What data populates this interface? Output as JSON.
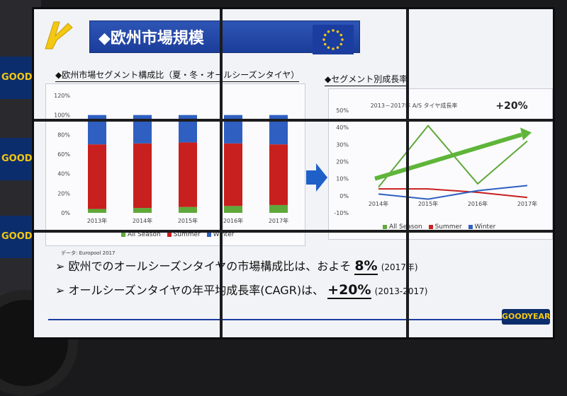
{
  "slide": {
    "title": "◆欧州市場規模",
    "left_section_title": "◆欧州市場セグメント構成比（夏・冬・オールシーズンタイヤ）",
    "right_section_title": "◆セグメント別成長率",
    "source": "データ: Europool 2017",
    "bullet1_text": "欧州でのオールシーズンタイヤの市場構成比は、およそ",
    "bullet1_value": "8%",
    "bullet1_suffix": "(2017年)",
    "bullet2_text": "オールシーズンタイヤの年平均成長率(CAGR)は、",
    "bullet2_value": "+20%",
    "bullet2_suffix": "(2013-2017)",
    "bullet_marker": "➢",
    "brand": "GOODYEAR",
    "stage_banner": "GOODYEAR"
  },
  "colors": {
    "all_season": "#5fa83a",
    "summer": "#c8201e",
    "winter": "#2f5fc0",
    "title_bar": "#1b3d9a",
    "trend_arrow": "#5fb53a"
  },
  "chart_data": [
    {
      "type": "bar",
      "stacked": true,
      "categories": [
        "2013年",
        "2014年",
        "2015年",
        "2016年",
        "2017年"
      ],
      "series": [
        {
          "name": "All Season",
          "values": [
            4,
            5,
            6,
            7,
            8
          ]
        },
        {
          "name": "Summer",
          "values": [
            66,
            66,
            66,
            64,
            62
          ]
        },
        {
          "name": "Winter",
          "values": [
            30,
            29,
            28,
            29,
            30
          ]
        }
      ],
      "ylim": [
        0,
        120
      ],
      "yticks": [
        "0%",
        "20%",
        "40%",
        "60%",
        "80%",
        "100%",
        "120%"
      ],
      "legend": "bottom",
      "grid": false
    },
    {
      "type": "line",
      "categories": [
        "2014年",
        "2015年",
        "2016年",
        "2017年"
      ],
      "series": [
        {
          "name": "All Season",
          "values": [
            5,
            41,
            7,
            32
          ]
        },
        {
          "name": "Summer",
          "values": [
            4,
            4,
            2,
            -1
          ]
        },
        {
          "name": "Winter",
          "values": [
            1,
            -2,
            3,
            6
          ]
        }
      ],
      "ylim": [
        -10,
        50
      ],
      "yticks": [
        "-10%",
        "0%",
        "10%",
        "20%",
        "30%",
        "40%",
        "50%"
      ],
      "annotation": "2013－2017年 A/S タイヤ成長率",
      "annotation_value": "+20%",
      "legend": "bottom",
      "grid": false
    }
  ]
}
